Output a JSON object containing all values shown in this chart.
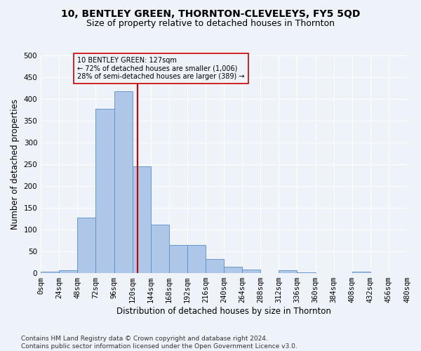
{
  "title": "10, BENTLEY GREEN, THORNTON-CLEVELEYS, FY5 5QD",
  "subtitle": "Size of property relative to detached houses in Thornton",
  "xlabel": "Distribution of detached houses by size in Thornton",
  "ylabel": "Number of detached properties",
  "bar_values": [
    4,
    6,
    128,
    378,
    418,
    246,
    111,
    65,
    65,
    33,
    15,
    8,
    0,
    6,
    2,
    0,
    0,
    4,
    0,
    0
  ],
  "bin_edges": [
    0,
    24,
    48,
    72,
    96,
    120,
    144,
    168,
    192,
    216,
    240,
    264,
    288,
    312,
    336,
    360,
    384,
    408,
    432,
    456,
    480
  ],
  "bar_color": "#aec6e8",
  "bar_edge_color": "#5b8ec4",
  "vline_x": 127,
  "vline_color": "#cc0000",
  "annotation_text": "10 BENTLEY GREEN: 127sqm\n← 72% of detached houses are smaller (1,006)\n28% of semi-detached houses are larger (389) →",
  "annotation_box_color": "#cc0000",
  "ylim": [
    0,
    500
  ],
  "yticks": [
    0,
    50,
    100,
    150,
    200,
    250,
    300,
    350,
    400,
    450,
    500
  ],
  "tick_labels": [
    "0sqm",
    "24sqm",
    "48sqm",
    "72sqm",
    "96sqm",
    "120sqm",
    "144sqm",
    "168sqm",
    "192sqm",
    "216sqm",
    "240sqm",
    "264sqm",
    "288sqm",
    "312sqm",
    "336sqm",
    "360sqm",
    "384sqm",
    "408sqm",
    "432sqm",
    "456sqm",
    "480sqm"
  ],
  "footnote": "Contains HM Land Registry data © Crown copyright and database right 2024.\nContains public sector information licensed under the Open Government Licence v3.0.",
  "bg_color": "#eef2f9",
  "grid_color": "#ffffff",
  "title_fontsize": 10,
  "subtitle_fontsize": 9,
  "axis_label_fontsize": 8.5,
  "tick_fontsize": 7.5,
  "footnote_fontsize": 6.5
}
